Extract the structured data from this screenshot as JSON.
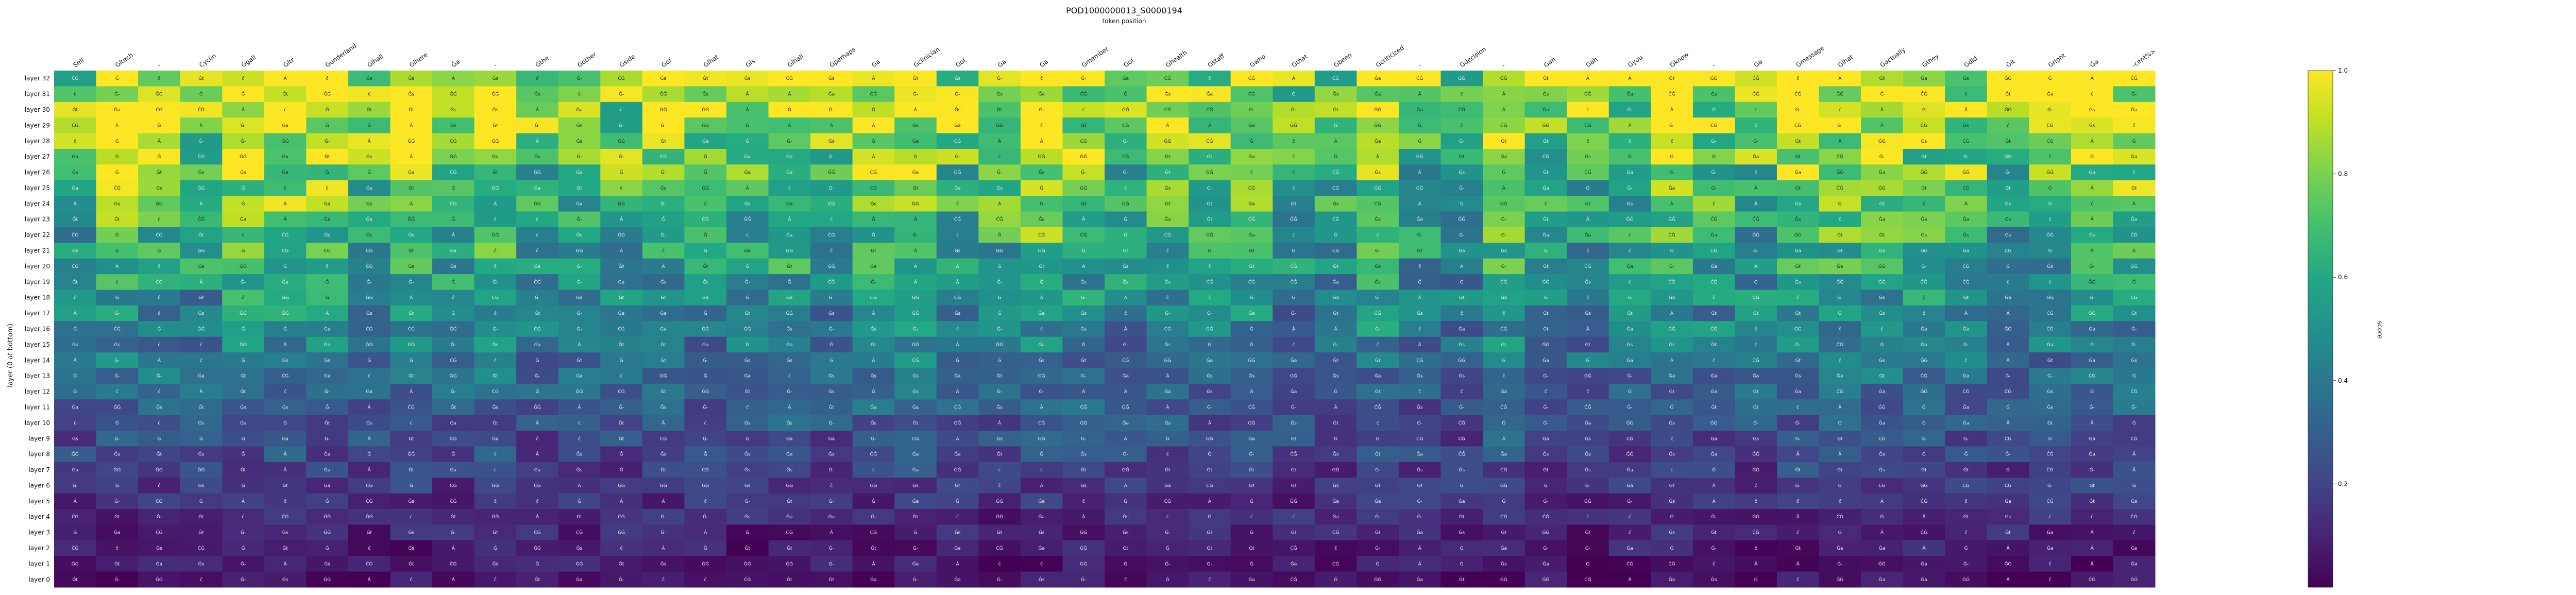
{
  "chart_data": {
    "type": "heatmap",
    "title": "POD1000000013_S0000194",
    "subtitle": "token position",
    "ylabel": "layer (0 at bottom)",
    "colorbar_label": "score",
    "colormap": "viridis",
    "value_range": [
      0.0,
      1.0
    ],
    "colorbar_ticks": [
      "1.0",
      "0.8",
      "0.6",
      "0.4",
      "0.2"
    ],
    "x_tick_labels": [
      "Sell",
      "Gltech",
      "-",
      "Cyclin",
      "Ggall",
      "Gltr",
      "Gunderland",
      "Glhall",
      "Glhere",
      "Ġa",
      "-",
      "Gthe",
      "Gother",
      "Gside",
      "Gof",
      "Glhat",
      "Gis",
      "Glhall",
      "Gperhaps",
      "Ga",
      "Gclinician",
      "Gof",
      "Ga",
      "Ga",
      "Gmember",
      "Gof",
      "Ghealth",
      "Gstaff",
      "Gwho",
      "Gthat",
      "Gbeen",
      "Gcriticized",
      "-",
      "Gdecision",
      "-",
      "Gan",
      "Gah",
      "Gyou",
      "Gknow",
      "-",
      "Ga",
      "Gmessage",
      "Glhat",
      "Gactually",
      "Gthey",
      "Gdid",
      "Git",
      "Gright",
      "Ġa",
      "-cent%>"
    ],
    "y_tick_labels": [
      "layer 32",
      "layer 31",
      "layer 30",
      "layer 29",
      "layer 28",
      "layer 27",
      "layer 26",
      "layer 25",
      "layer 24",
      "layer 23",
      "layer 22",
      "layer 21",
      "layer 20",
      "layer 19",
      "layer 18",
      "layer 17",
      "layer 16",
      "layer 15",
      "layer 14",
      "layer 13",
      "layer 12",
      "layer 11",
      "layer 10",
      "layer 9",
      "layer 8",
      "layer 7",
      "layer 6",
      "layer 5",
      "layer 4",
      "layer 3",
      "layer 2",
      "layer 1",
      "layer 0"
    ],
    "cell_token_glyphs": [
      "Ġt",
      "Ġs",
      "Ġ",
      "Ġa",
      "ĉ",
      "Ġ-",
      "ĠĠ",
      "Â",
      "ĊĠ"
    ]
  }
}
